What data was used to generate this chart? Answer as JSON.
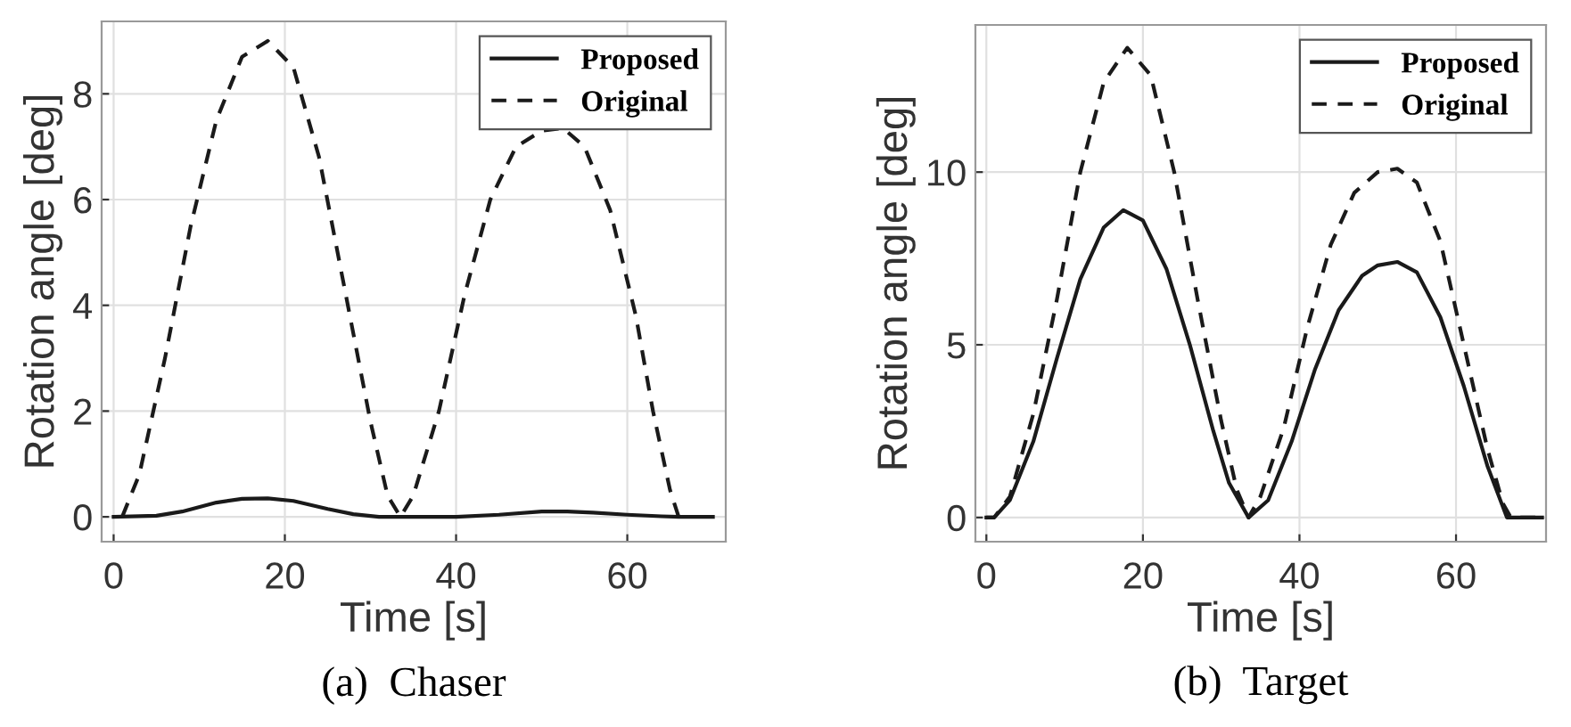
{
  "chart_data": [
    {
      "type": "line",
      "xlabel": "Time [s]",
      "ylabel": "Rotation angle [deg]",
      "annotations": [
        "(a)  Chaser"
      ],
      "xlim": [
        -1.4,
        71.5
      ],
      "ylim": [
        -0.47,
        9.37
      ],
      "xticks": [
        0,
        20,
        40,
        60
      ],
      "yticks": [
        0,
        2,
        4,
        6,
        8
      ],
      "grid": true,
      "legend": "top right",
      "series": [
        {
          "name": "Proposed",
          "color": "#1a1a1a",
          "line_style": "solid",
          "x": [
            0,
            5,
            8,
            12,
            15,
            18,
            21,
            25,
            28,
            31,
            40,
            45,
            50,
            53,
            56,
            60,
            64,
            66,
            70
          ],
          "values": [
            0,
            0.02,
            0.1,
            0.27,
            0.34,
            0.35,
            0.3,
            0.15,
            0.05,
            0,
            0,
            0.04,
            0.1,
            0.1,
            0.08,
            0.04,
            0.01,
            0,
            0
          ]
        },
        {
          "name": "Original",
          "color": "#1a1a1a",
          "line_style": "dashed",
          "x": [
            1,
            3,
            6,
            9,
            12,
            15,
            18,
            21,
            24,
            27,
            30,
            32,
            33.5,
            35,
            38,
            41,
            44,
            47,
            50,
            52.5,
            55,
            58,
            61,
            63,
            65,
            66
          ],
          "values": [
            0,
            0.8,
            3.0,
            5.5,
            7.5,
            8.7,
            9.0,
            8.5,
            6.8,
            4.3,
            1.8,
            0.4,
            0,
            0.4,
            2.0,
            4.2,
            6.0,
            7.0,
            7.3,
            7.35,
            7.0,
            5.8,
            3.8,
            2.0,
            0.5,
            0
          ]
        }
      ]
    },
    {
      "type": "line",
      "xlabel": "Time [s]",
      "ylabel": "Rotation angle [deg]",
      "annotations": [
        "(b)  Target"
      ],
      "xlim": [
        -1.4,
        71.5
      ],
      "ylim": [
        -0.7,
        14.26
      ],
      "xticks": [
        0,
        20,
        40,
        60
      ],
      "yticks": [
        0,
        5,
        10
      ],
      "grid": true,
      "legend": "top right",
      "series": [
        {
          "name": "Proposed",
          "color": "#1a1a1a",
          "line_style": "solid",
          "x": [
            0,
            1,
            3,
            6,
            9,
            12,
            15,
            17.5,
            20,
            23,
            26,
            29,
            31,
            33.5,
            36,
            39,
            42,
            45,
            48,
            50,
            52.5,
            55,
            58,
            61,
            64,
            66.5,
            71
          ],
          "values": [
            0,
            0,
            0.5,
            2.2,
            4.6,
            6.9,
            8.4,
            8.9,
            8.6,
            7.2,
            5.0,
            2.5,
            1.0,
            0,
            0.5,
            2.2,
            4.3,
            6.0,
            7.0,
            7.3,
            7.4,
            7.1,
            5.8,
            3.8,
            1.5,
            0,
            0
          ]
        },
        {
          "name": "Original",
          "color": "#1a1a1a",
          "line_style": "dashed",
          "x": [
            0,
            1,
            3,
            6,
            9,
            12,
            15,
            18,
            21,
            24,
            27,
            30,
            32,
            33.5,
            35,
            38,
            41,
            44,
            47,
            50,
            52.5,
            55,
            58,
            61,
            64,
            66,
            67,
            71
          ],
          "values": [
            0,
            0,
            0.6,
            3.0,
            6.3,
            10.0,
            12.6,
            13.6,
            12.8,
            10.0,
            6.3,
            2.8,
            0.8,
            0,
            0.6,
            2.6,
            5.5,
            7.9,
            9.4,
            10.0,
            10.1,
            9.7,
            8.0,
            5.0,
            2.0,
            0.4,
            0,
            0
          ]
        }
      ]
    }
  ]
}
